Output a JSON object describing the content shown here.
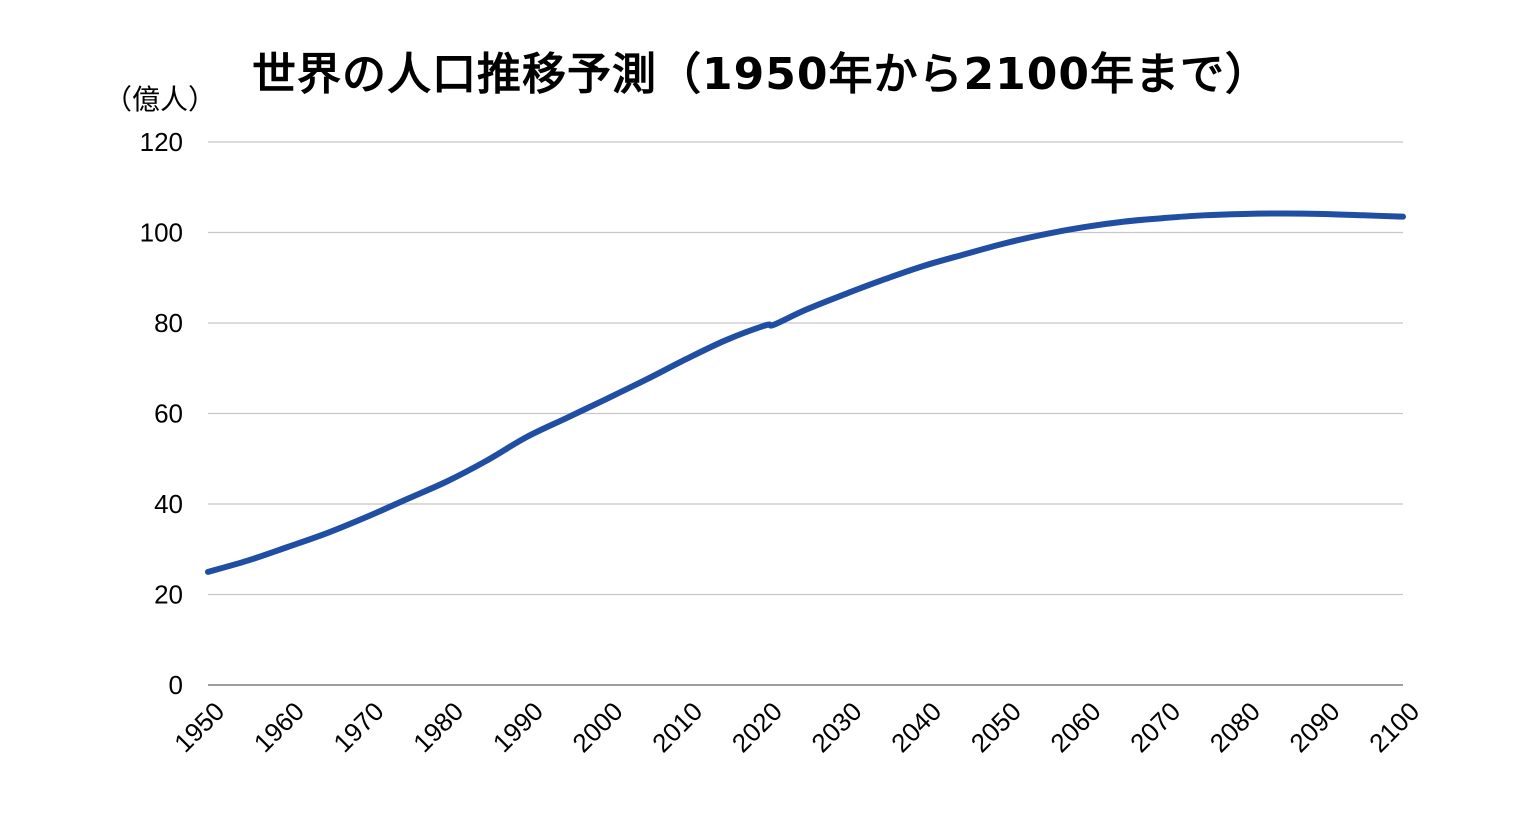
{
  "chart_data": {
    "type": "line",
    "title": "世界の人口推移予測（1950年から2100年まで）",
    "ylabel": "（億人）",
    "xlabel": "",
    "xlim": [
      1950,
      2100
    ],
    "ylim": [
      0,
      120
    ],
    "yticks": [
      0,
      20,
      40,
      60,
      80,
      100,
      120
    ],
    "xticks": [
      1950,
      1960,
      1970,
      1980,
      1990,
      2000,
      2010,
      2020,
      2030,
      2040,
      2050,
      2060,
      2070,
      2080,
      2090,
      2100
    ],
    "grid": true,
    "legend": "none",
    "series": [
      {
        "color": "#1f4ea3",
        "x": [
          1950,
          1955,
          1960,
          1965,
          1970,
          1975,
          1980,
          1985,
          1990,
          1995,
          2000,
          2005,
          2010,
          2015,
          2020,
          2021,
          2025,
          2030,
          2035,
          2040,
          2045,
          2050,
          2055,
          2060,
          2065,
          2070,
          2075,
          2080,
          2085,
          2090,
          2095,
          2100
        ],
        "y": [
          25.0,
          27.5,
          30.5,
          33.6,
          37.2,
          41.1,
          45.0,
          49.6,
          54.8,
          59.0,
          63.2,
          67.5,
          72.0,
          76.2,
          79.5,
          79.6,
          82.9,
          86.4,
          89.7,
          92.7,
          95.2,
          97.6,
          99.6,
          101.2,
          102.4,
          103.2,
          103.8,
          104.1,
          104.2,
          104.1,
          103.8,
          103.5
        ]
      }
    ]
  }
}
